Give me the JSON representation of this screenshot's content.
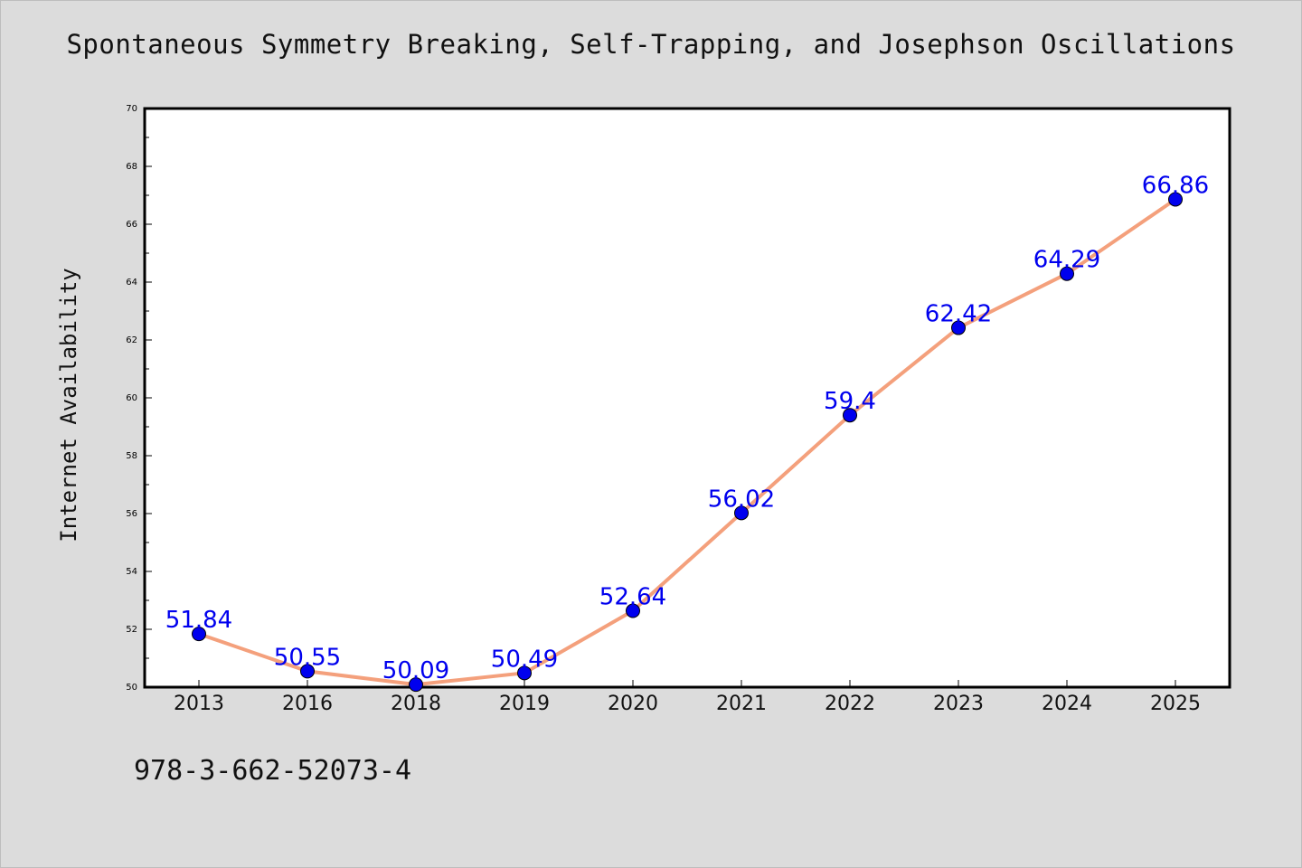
{
  "chart_data": {
    "type": "line",
    "title": "Spontaneous Symmetry Breaking, Self-Trapping, and Josephson Oscillations",
    "ylabel": "Internet Availability",
    "xlabel": "",
    "categories": [
      "2013",
      "2016",
      "2018",
      "2019",
      "2020",
      "2021",
      "2022",
      "2023",
      "2024",
      "2025"
    ],
    "series": [
      {
        "values": [
          51.84,
          50.55,
          50.09,
          50.49,
          52.64,
          56.02,
          59.4,
          62.42,
          64.29,
          66.86
        ],
        "labels": [
          "51.84",
          "50.55",
          "50.09",
          "50.49",
          "52.64",
          "56.02",
          "59.4",
          "62.42",
          "64.29",
          "66.86"
        ],
        "line_color": "#f4a07c",
        "marker_color": "#0000ee",
        "label_color": "#0000ee"
      }
    ],
    "ylim": [
      50,
      70
    ],
    "yticks": [
      50,
      52,
      54,
      56,
      58,
      60,
      62,
      64,
      66,
      68,
      70
    ],
    "ytick_labels": [
      "50",
      "52",
      "54",
      "56",
      "58",
      "60",
      "62",
      "64",
      "66",
      "68",
      "70"
    ],
    "grid": false,
    "legend": "none"
  },
  "footer": {
    "code": "978-3-662-52073-4"
  },
  "colors": {
    "background": "#dcdcdc",
    "plot_background": "#ffffff",
    "axis": "#000000"
  }
}
